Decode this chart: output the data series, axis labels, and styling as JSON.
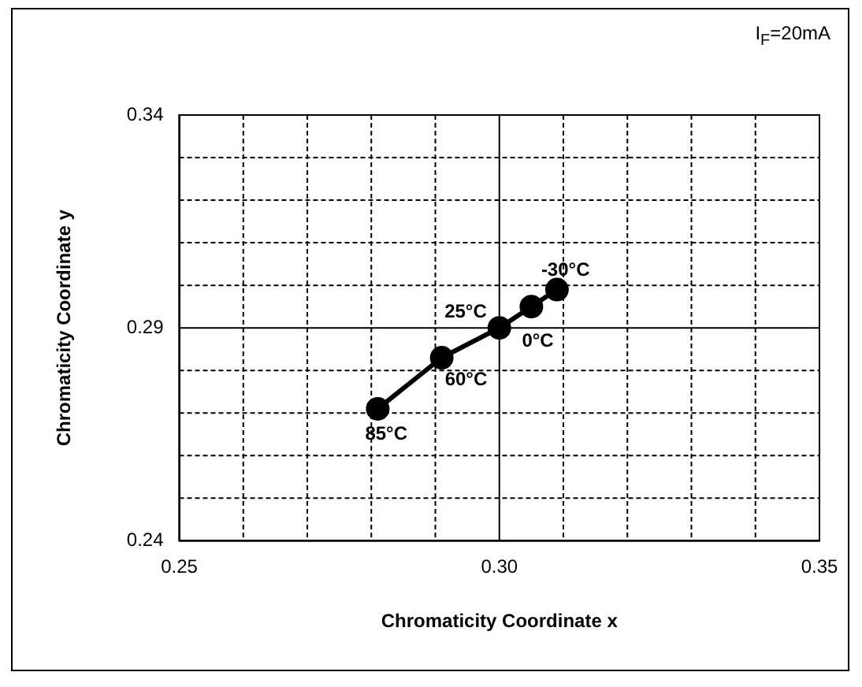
{
  "chart_data": {
    "type": "line",
    "xlabel": "Chromaticity Coordinate x",
    "ylabel": "Chromaticity Coordinate y",
    "x": [
      0.281,
      0.291,
      0.3,
      0.305,
      0.309
    ],
    "series": [
      {
        "color": "#000000",
        "values": [
          0.271,
          0.283,
          0.29,
          0.295,
          0.299
        ]
      }
    ],
    "xlim": [
      0.25,
      0.35
    ],
    "ylim": [
      0.24,
      0.34
    ],
    "xticks": [
      0.25,
      {
        "value": 0.26,
        "label": null
      },
      {
        "value": 0.27,
        "label": null
      },
      {
        "value": 0.28,
        "label": null
      },
      {
        "value": 0.29,
        "label": null
      },
      {
        "value": 0.3,
        "label": "0.30"
      },
      {
        "value": 0.31,
        "label": null
      },
      {
        "value": 0.32,
        "label": null
      },
      {
        "value": 0.33,
        "label": null
      },
      {
        "value": 0.34,
        "label": null
      },
      0.35
    ],
    "yticks": [
      0.24,
      {
        "value": 0.25,
        "label": null
      },
      {
        "value": 0.26,
        "label": null
      },
      {
        "value": 0.27,
        "label": null
      },
      {
        "value": 0.28,
        "label": null
      },
      0.29,
      {
        "value": 0.3,
        "label": null
      },
      {
        "value": 0.31,
        "label": null
      },
      {
        "value": 0.32,
        "label": null
      },
      {
        "value": 0.33,
        "label": null
      },
      0.34
    ],
    "grid": true,
    "legend": false,
    "marker": "circle",
    "line_style": "solid",
    "annotations": [
      "I$_{F}$=20mA",
      {
        "text": "85°C",
        "x": 0.281,
        "y": 0.271
      },
      {
        "text": "60°C",
        "x": 0.291,
        "y": 0.283
      },
      {
        "text": "25°C",
        "x": 0.3,
        "y": 0.29
      },
      {
        "text": "0°C",
        "x": 0.305,
        "y": 0.295
      },
      {
        "text": "-30°C",
        "x": 0.309,
        "y": 0.299
      }
    ]
  }
}
